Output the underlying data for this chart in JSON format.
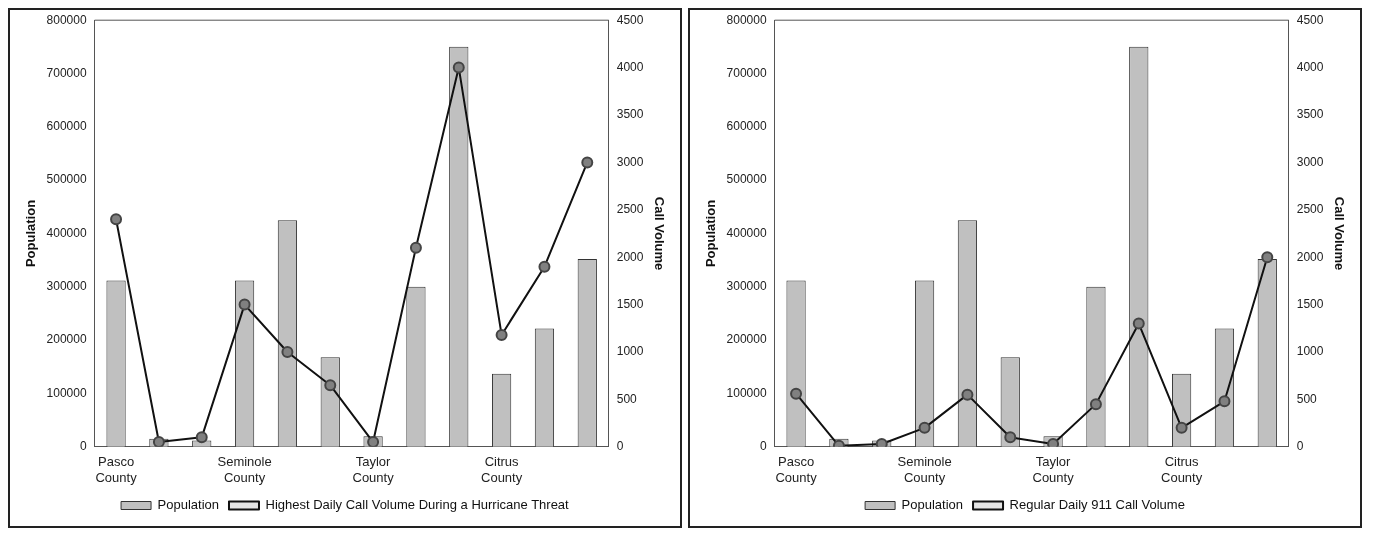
{
  "chart_data": [
    {
      "type": "bar",
      "categories": [
        "Pasco County",
        null,
        null,
        "Seminole County",
        null,
        null,
        "Taylor County",
        null,
        null,
        "Citrus County",
        null,
        null
      ],
      "ylabel": "Population",
      "y2label": "Call Volume",
      "ylim": [
        0,
        800000
      ],
      "yticks": [
        0,
        100000,
        200000,
        300000,
        400000,
        500000,
        600000,
        700000,
        800000
      ],
      "y2lim": [
        0,
        4500
      ],
      "y2ticks": [
        0,
        500,
        1000,
        1500,
        2000,
        2500,
        3000,
        3500,
        4000,
        4500
      ],
      "legend": "bottom",
      "marker": "circle",
      "grid": false,
      "series": [
        {
          "name": "Population",
          "color": "#c0c0c0",
          "values": [
            312000,
            15000,
            12000,
            312000,
            425000,
            168000,
            20000,
            300000,
            750000,
            137000,
            222000,
            352000
          ]
        },
        {
          "name": "Highest Daily Call Volume During a Hurricane Threat",
          "type": "line",
          "axis": "y2",
          "color": "#111111",
          "values": [
            2400,
            50,
            100,
            1500,
            1000,
            650,
            50,
            2100,
            4000,
            1180,
            1900,
            3000
          ]
        }
      ]
    },
    {
      "type": "bar",
      "categories": [
        "Pasco County",
        null,
        null,
        "Seminole County",
        null,
        null,
        "Taylor County",
        null,
        null,
        "Citrus County",
        null,
        null
      ],
      "ylabel": "Population",
      "y2label": "Call Volume",
      "ylim": [
        0,
        800000
      ],
      "yticks": [
        0,
        100000,
        200000,
        300000,
        400000,
        500000,
        600000,
        700000,
        800000
      ],
      "y2lim": [
        0,
        4500
      ],
      "y2ticks": [
        0,
        500,
        1000,
        1500,
        2000,
        2500,
        3000,
        3500,
        4000,
        4500
      ],
      "legend": "bottom",
      "marker": "circle",
      "grid": false,
      "series": [
        {
          "name": "Population",
          "color": "#c0c0c0",
          "values": [
            312000,
            15000,
            12000,
            312000,
            425000,
            168000,
            20000,
            300000,
            750000,
            137000,
            222000,
            352000
          ]
        },
        {
          "name": "Regular Daily 911 Call Volume",
          "type": "line",
          "axis": "y2",
          "color": "#111111",
          "values": [
            560,
            10,
            30,
            200,
            550,
            100,
            30,
            450,
            1300,
            200,
            480,
            2000
          ]
        }
      ]
    }
  ]
}
